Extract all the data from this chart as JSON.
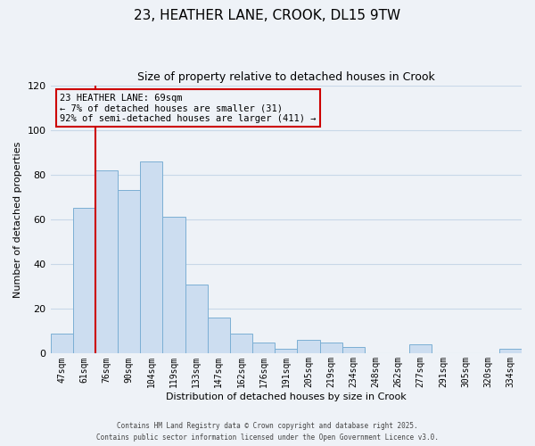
{
  "title": "23, HEATHER LANE, CROOK, DL15 9TW",
  "subtitle": "Size of property relative to detached houses in Crook",
  "xlabel": "Distribution of detached houses by size in Crook",
  "ylabel": "Number of detached properties",
  "bar_labels": [
    "47sqm",
    "61sqm",
    "76sqm",
    "90sqm",
    "104sqm",
    "119sqm",
    "133sqm",
    "147sqm",
    "162sqm",
    "176sqm",
    "191sqm",
    "205sqm",
    "219sqm",
    "234sqm",
    "248sqm",
    "262sqm",
    "277sqm",
    "291sqm",
    "305sqm",
    "320sqm",
    "334sqm"
  ],
  "bar_values": [
    9,
    65,
    82,
    73,
    86,
    61,
    31,
    16,
    9,
    5,
    2,
    6,
    5,
    3,
    0,
    0,
    4,
    0,
    0,
    0,
    2
  ],
  "bar_color": "#ccddf0",
  "bar_edge_color": "#7bafd4",
  "vline_x_index": 1,
  "vline_color": "#cc0000",
  "annotation_lines": [
    "23 HEATHER LANE: 69sqm",
    "← 7% of detached houses are smaller (31)",
    "92% of semi-detached houses are larger (411) →"
  ],
  "ylim": [
    0,
    120
  ],
  "yticks": [
    0,
    20,
    40,
    60,
    80,
    100,
    120
  ],
  "grid_color": "#c8d8e8",
  "background_color": "#eef2f7",
  "footer_lines": [
    "Contains HM Land Registry data © Crown copyright and database right 2025.",
    "Contains public sector information licensed under the Open Government Licence v3.0."
  ],
  "title_fontsize": 11,
  "subtitle_fontsize": 9,
  "xlabel_fontsize": 8,
  "ylabel_fontsize": 8,
  "tick_fontsize": 7,
  "annotation_fontsize": 7.5,
  "footer_fontsize": 5.5
}
